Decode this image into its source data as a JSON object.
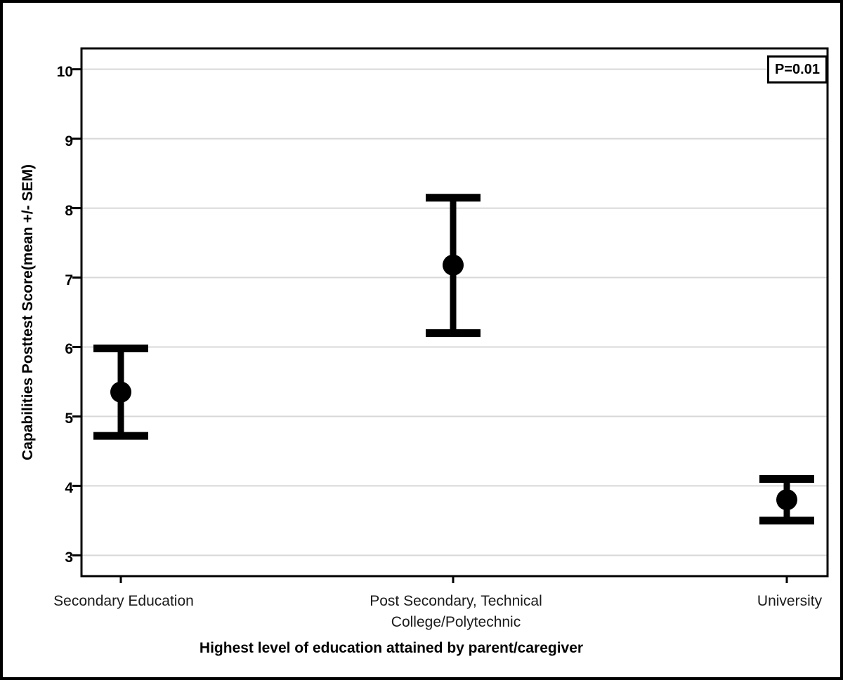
{
  "figure": {
    "background": "#ffffff",
    "border_color": "#000000",
    "series_color": "#000000",
    "gridline_color": "#d8d8d8"
  },
  "chart_data": {
    "type": "scatter",
    "subtype": "point-with-error-bars",
    "title": "",
    "xlabel": "Highest level of education attained by parent/caregiver",
    "ylabel": "Capabilities Posttest Score(mean +/- SEM)",
    "annotation": "P=0.01",
    "categories": [
      {
        "lines": [
          "Secondary Education"
        ]
      },
      {
        "lines": [
          "Post Secondary, Technical",
          "College/Polytechnic"
        ]
      },
      {
        "lines": [
          "University"
        ]
      }
    ],
    "series": [
      {
        "name": "mean",
        "values": [
          5.35,
          7.18,
          3.8
        ],
        "error_upper": [
          5.98,
          8.15,
          4.1
        ],
        "error_lower": [
          4.72,
          6.2,
          3.5
        ]
      }
    ],
    "yticks": [
      3,
      4,
      5,
      6,
      7,
      8,
      9,
      10
    ],
    "ylim": [
      2.7,
      10.3
    ],
    "grid": "horizontal",
    "legend": "none"
  }
}
